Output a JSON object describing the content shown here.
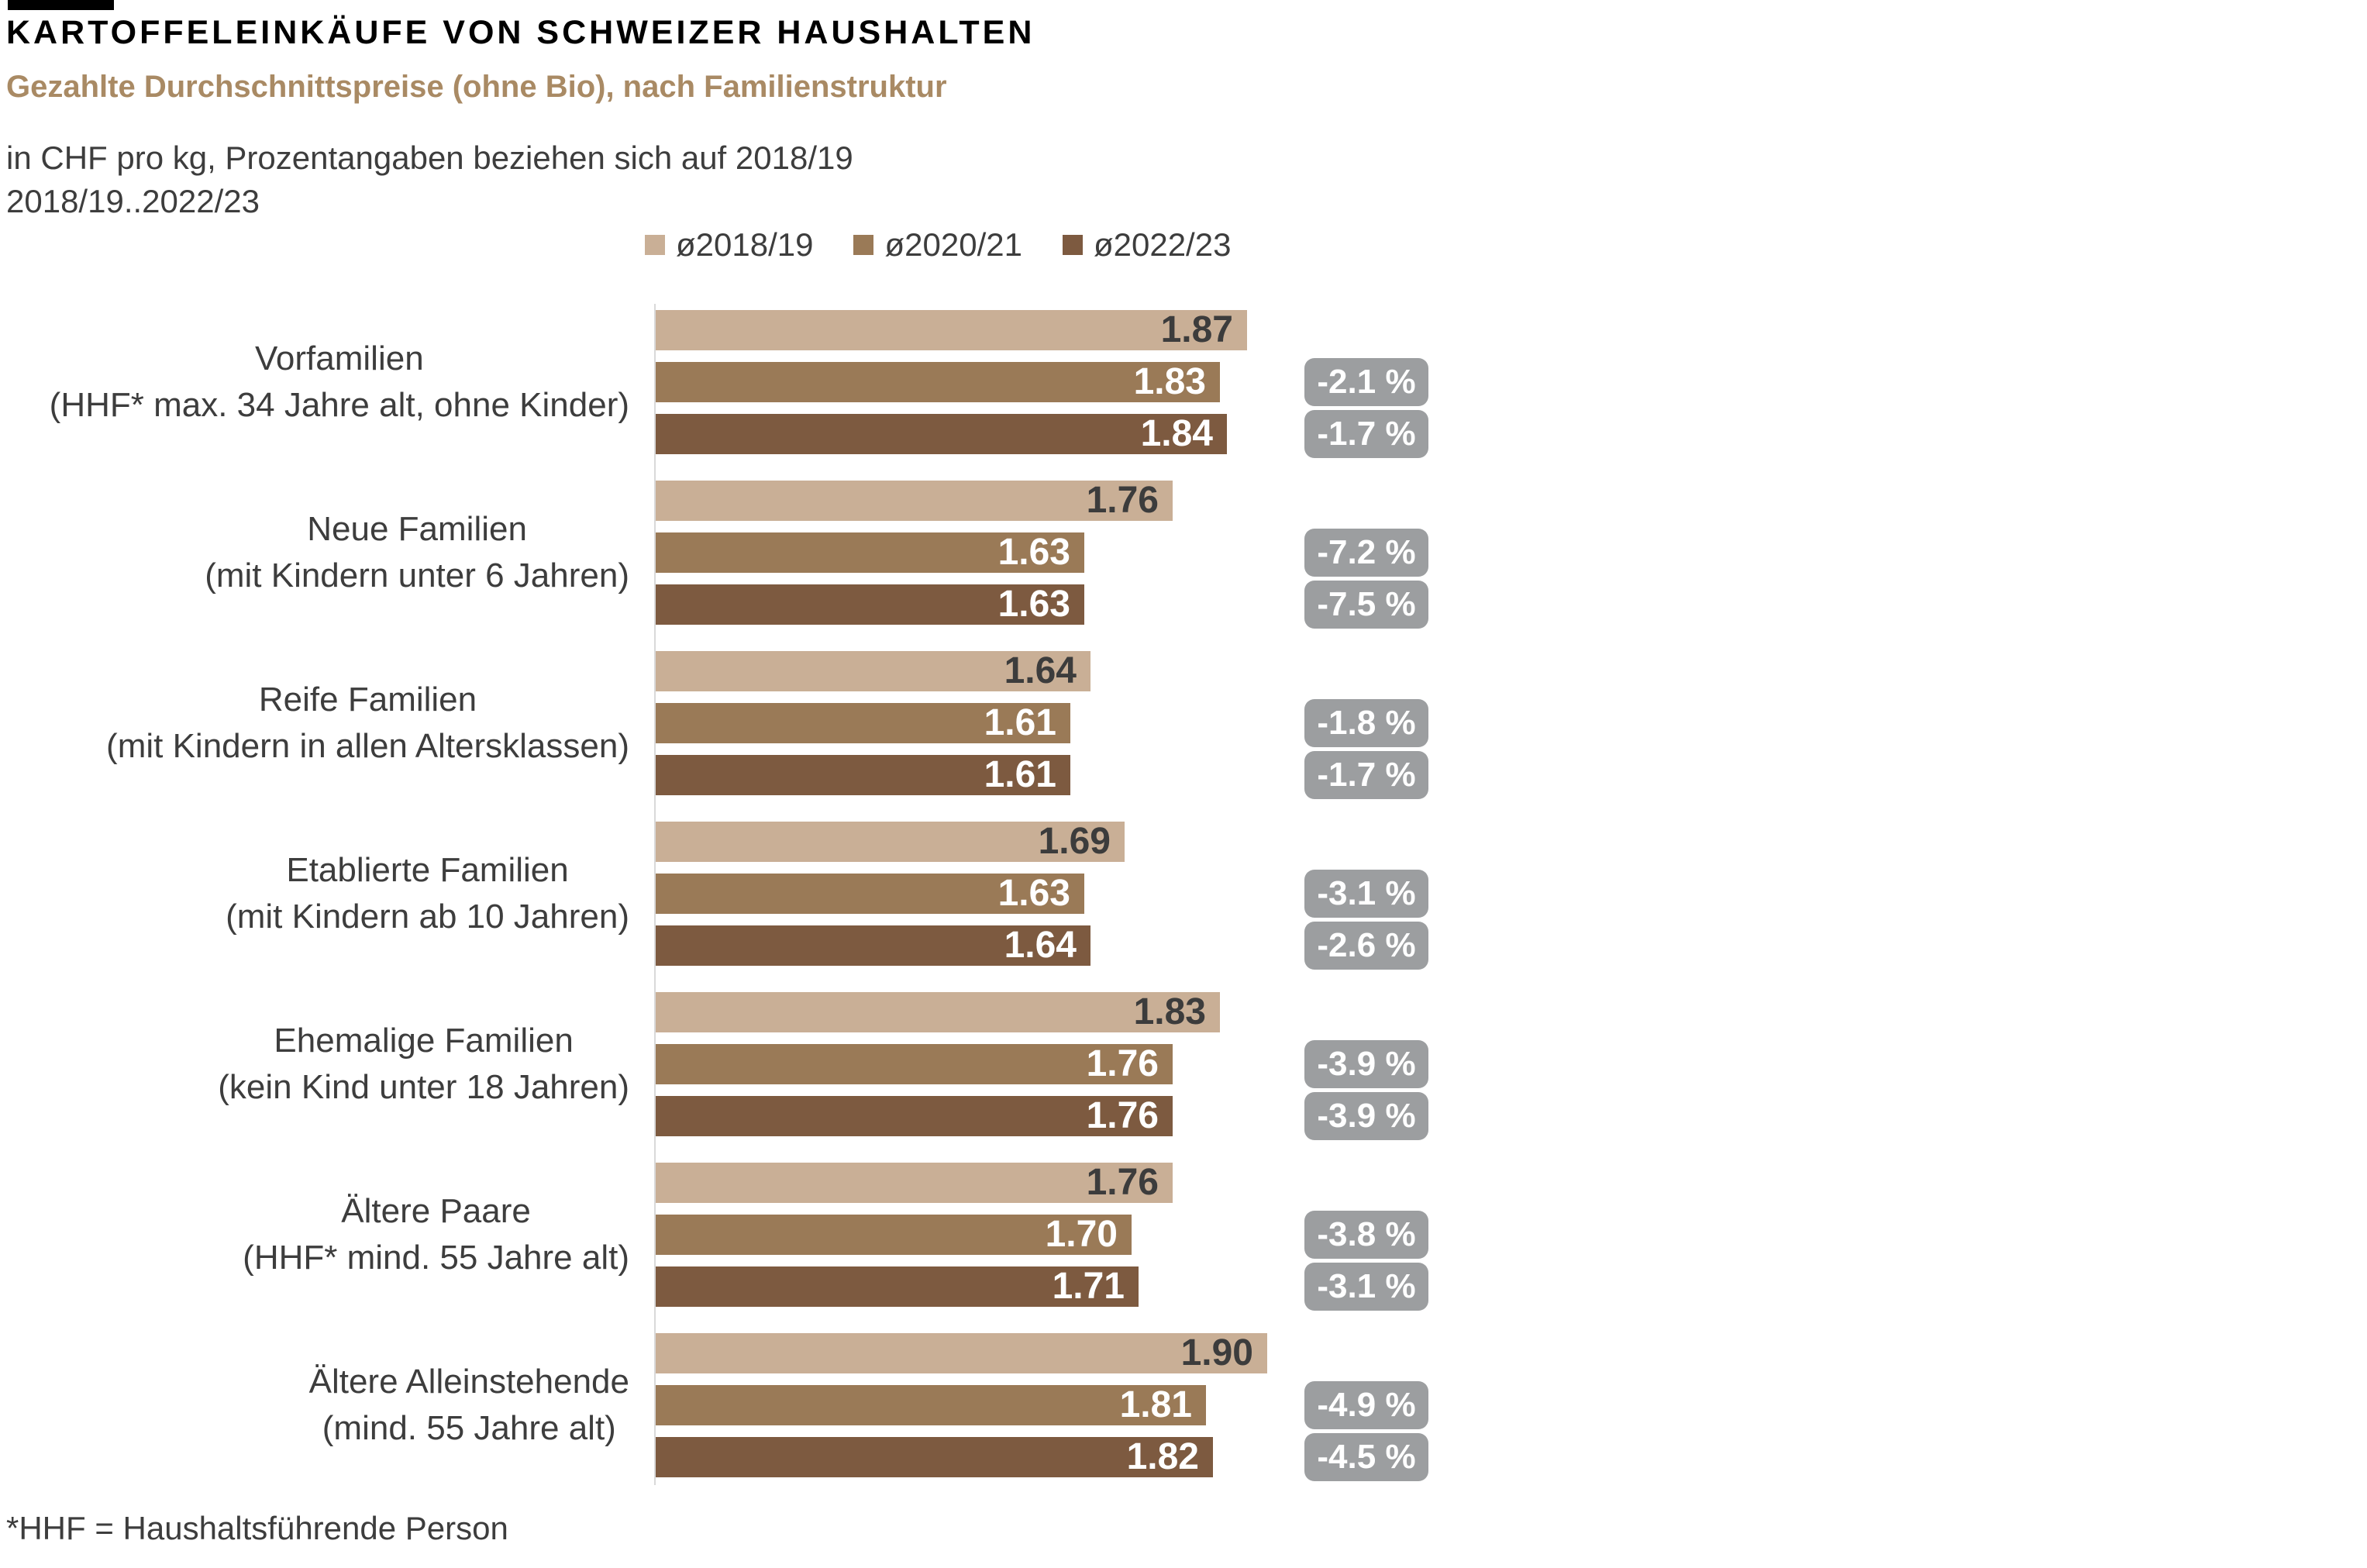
{
  "header": {
    "title": "KARTOFFELEINKÄUFE VON SCHWEIZER HAUSHALTEN",
    "subtitle": "Gezahlte Durchschnittspreise (ohne Bio), nach Familienstruktur",
    "unit_note": "in CHF pro kg, Prozentangaben beziehen sich auf 2018/19",
    "range_note": "2018/19..2022/23"
  },
  "footer": {
    "footnote": "*HHF = Haushaltsführende Person"
  },
  "colors": {
    "series1": "#C9AF96",
    "series2": "#9A7A57",
    "series3": "#7D5A40",
    "badge": "#9C9EA0",
    "subtitle": "#A98A64",
    "text": "#3D3D3D"
  },
  "chart_data": {
    "type": "bar",
    "orientation": "horizontal",
    "title": "Kartoffeleinkäufe von Schweizer Haushalten – Gezahlte Durchschnittspreise (ohne Bio), nach Familienstruktur",
    "unit": "CHF pro kg",
    "xlim": [
      1.0,
      2.0
    ],
    "grid": false,
    "legend_position": "top",
    "series_names": [
      "ø2018/19",
      "ø2020/21",
      "ø2022/23"
    ],
    "groups": [
      {
        "label": "Vorfamilien",
        "sublabel": "(HHF* max. 34 Jahre alt, ohne Kinder)",
        "values": [
          1.87,
          1.83,
          1.84
        ],
        "changes": [
          "-2.1 %",
          "-1.7 %"
        ]
      },
      {
        "label": "Neue Familien",
        "sublabel": "(mit Kindern unter 6 Jahren)",
        "values": [
          1.76,
          1.63,
          1.63
        ],
        "changes": [
          "-7.2 %",
          "-7.5 %"
        ]
      },
      {
        "label": "Reife Familien",
        "sublabel": "(mit Kindern in allen Altersklassen)",
        "values": [
          1.64,
          1.61,
          1.61
        ],
        "changes": [
          "-1.8 %",
          "-1.7 %"
        ]
      },
      {
        "label": "Etablierte Familien",
        "sublabel": "(mit Kindern ab 10 Jahren)",
        "values": [
          1.69,
          1.63,
          1.64
        ],
        "changes": [
          "-3.1 %",
          "-2.6 %"
        ]
      },
      {
        "label": "Ehemalige Familien",
        "sublabel": "(kein Kind unter 18 Jahren)",
        "values": [
          1.83,
          1.76,
          1.76
        ],
        "changes": [
          "-3.9 %",
          "-3.9 %"
        ]
      },
      {
        "label": "Ältere Paare",
        "sublabel": "(HHF* mind. 55 Jahre alt)",
        "values": [
          1.76,
          1.7,
          1.71
        ],
        "changes": [
          "-3.8 %",
          "-3.1 %"
        ]
      },
      {
        "label": "Ältere Alleinstehende",
        "sublabel": "(mind. 55 Jahre alt)",
        "values": [
          1.9,
          1.81,
          1.82
        ],
        "changes": [
          "-4.9 %",
          "-4.5 %"
        ]
      }
    ]
  }
}
